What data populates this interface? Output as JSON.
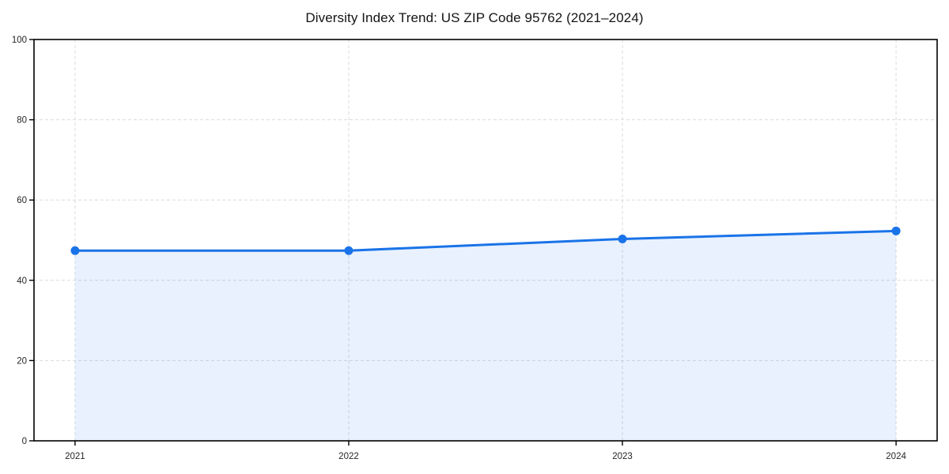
{
  "chart_data": {
    "type": "line",
    "title": "Diversity Index Trend: US ZIP Code 95762 (2021–2024)",
    "x": [
      2021,
      2022,
      2023,
      2024
    ],
    "xticks": [
      "2021",
      "2022",
      "2023",
      "2024"
    ],
    "yticks": [
      0,
      20,
      40,
      60,
      80,
      100
    ],
    "series": [
      {
        "name": "Diversity Index",
        "values": [
          47.4,
          47.4,
          50.3,
          52.3
        ]
      }
    ],
    "xlabel": "",
    "ylabel": "",
    "xlim": [
      2020.85,
      2024.15
    ],
    "ylim": [
      0,
      100
    ],
    "grid": true,
    "grid_style": "dashed",
    "legend": "none",
    "marker": "circle",
    "area_fill": true,
    "colors": {
      "line": "#1a73e8",
      "marker": "#1a73e8",
      "area": "rgba(26,115,232,0.10)",
      "grid": "#dedede",
      "axis": "#000000",
      "tick_text": "#262626",
      "title_text": "#141414",
      "background": "#ffffff"
    }
  }
}
